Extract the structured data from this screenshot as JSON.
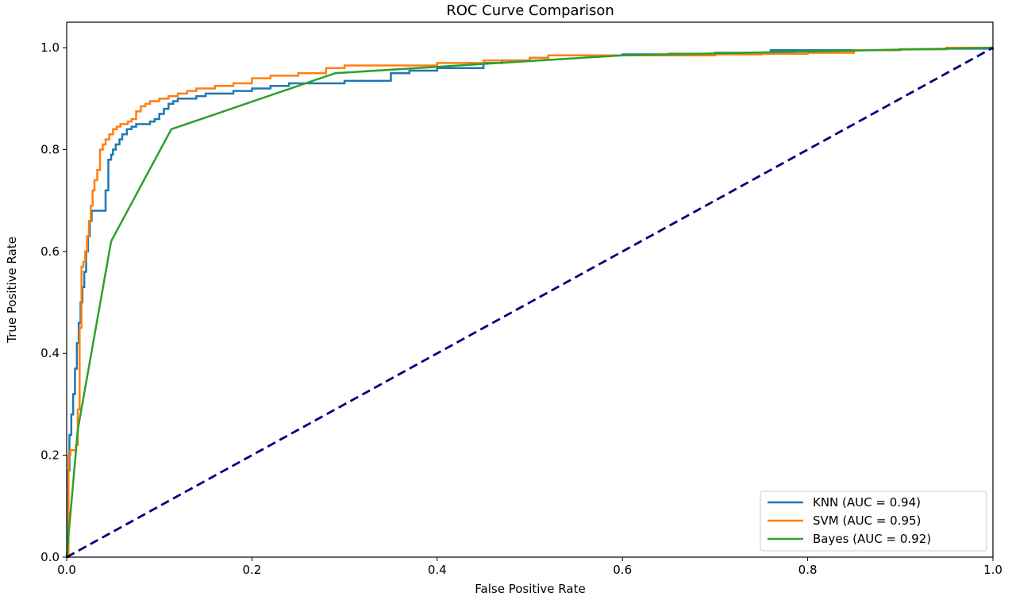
{
  "chart_data": {
    "type": "line",
    "title": "ROC Curve Comparison",
    "xlabel": "False Positive Rate",
    "ylabel": "True Positive Rate",
    "xlim": [
      0.0,
      1.0
    ],
    "ylim": [
      0.0,
      1.05
    ],
    "xticks": [
      "0.0",
      "0.2",
      "0.4",
      "0.6",
      "0.8",
      "1.0"
    ],
    "yticks": [
      "0.0",
      "0.2",
      "0.4",
      "0.6",
      "0.8",
      "1.0"
    ],
    "grid": false,
    "legend_position": "lower-right",
    "series": [
      {
        "name": "KNN (AUC = 0.94)",
        "color": "#1f77b4",
        "step": true,
        "x": [
          0.0,
          0.001,
          0.003,
          0.005,
          0.007,
          0.009,
          0.011,
          0.013,
          0.015,
          0.017,
          0.019,
          0.021,
          0.023,
          0.025,
          0.027,
          0.03,
          0.033,
          0.036,
          0.039,
          0.042,
          0.045,
          0.048,
          0.05,
          0.053,
          0.057,
          0.06,
          0.065,
          0.07,
          0.075,
          0.08,
          0.085,
          0.09,
          0.095,
          0.1,
          0.105,
          0.11,
          0.115,
          0.12,
          0.13,
          0.14,
          0.15,
          0.16,
          0.17,
          0.18,
          0.19,
          0.2,
          0.22,
          0.24,
          0.26,
          0.28,
          0.29,
          0.3,
          0.35,
          0.37,
          0.4,
          0.45,
          0.47,
          0.5,
          0.52,
          0.55,
          0.6,
          0.65,
          0.7,
          0.76,
          0.8,
          0.85,
          0.9,
          0.92,
          0.95,
          1.0
        ],
        "y": [
          0.0,
          0.17,
          0.24,
          0.28,
          0.32,
          0.37,
          0.42,
          0.46,
          0.5,
          0.53,
          0.56,
          0.6,
          0.63,
          0.66,
          0.68,
          0.68,
          0.68,
          0.68,
          0.68,
          0.72,
          0.78,
          0.79,
          0.8,
          0.81,
          0.82,
          0.83,
          0.84,
          0.845,
          0.85,
          0.85,
          0.85,
          0.855,
          0.86,
          0.87,
          0.88,
          0.89,
          0.895,
          0.9,
          0.9,
          0.905,
          0.91,
          0.91,
          0.91,
          0.915,
          0.915,
          0.92,
          0.925,
          0.93,
          0.93,
          0.93,
          0.93,
          0.935,
          0.95,
          0.955,
          0.96,
          0.97,
          0.975,
          0.98,
          0.985,
          0.985,
          0.987,
          0.988,
          0.99,
          0.995,
          0.995,
          0.995,
          0.997,
          0.997,
          0.998,
          1.0
        ]
      },
      {
        "name": "SVM (AUC = 0.95)",
        "color": "#ff7f0e",
        "step": true,
        "x": [
          0.0,
          0.002,
          0.004,
          0.006,
          0.008,
          0.01,
          0.012,
          0.014,
          0.016,
          0.018,
          0.02,
          0.022,
          0.024,
          0.026,
          0.028,
          0.03,
          0.033,
          0.036,
          0.039,
          0.042,
          0.046,
          0.05,
          0.054,
          0.058,
          0.062,
          0.066,
          0.07,
          0.075,
          0.08,
          0.085,
          0.09,
          0.1,
          0.11,
          0.12,
          0.13,
          0.14,
          0.15,
          0.16,
          0.18,
          0.2,
          0.22,
          0.25,
          0.28,
          0.3,
          0.35,
          0.4,
          0.45,
          0.5,
          0.52,
          0.55,
          0.6,
          0.65,
          0.7,
          0.75,
          0.8,
          0.85,
          0.9,
          0.95,
          1.0
        ],
        "y": [
          0.0,
          0.2,
          0.21,
          0.21,
          0.21,
          0.22,
          0.29,
          0.45,
          0.57,
          0.58,
          0.6,
          0.63,
          0.66,
          0.69,
          0.72,
          0.74,
          0.76,
          0.8,
          0.81,
          0.82,
          0.83,
          0.84,
          0.845,
          0.85,
          0.85,
          0.855,
          0.86,
          0.875,
          0.885,
          0.89,
          0.895,
          0.9,
          0.905,
          0.91,
          0.915,
          0.92,
          0.92,
          0.925,
          0.93,
          0.94,
          0.945,
          0.95,
          0.96,
          0.965,
          0.965,
          0.97,
          0.975,
          0.98,
          0.985,
          0.985,
          0.985,
          0.985,
          0.987,
          0.988,
          0.99,
          0.995,
          0.997,
          1.0,
          1.0
        ]
      },
      {
        "name": "Bayes (AUC = 0.92)",
        "color": "#2ca02c",
        "step": false,
        "x": [
          0.0,
          0.012,
          0.048,
          0.113,
          0.29,
          0.6,
          1.0
        ],
        "y": [
          0.0,
          0.25,
          0.62,
          0.84,
          0.95,
          0.985,
          1.0
        ]
      }
    ],
    "reference_line": {
      "x": [
        0.0,
        1.0
      ],
      "y": [
        0.0,
        1.0
      ],
      "color": "#000080",
      "style": "dashed"
    }
  }
}
